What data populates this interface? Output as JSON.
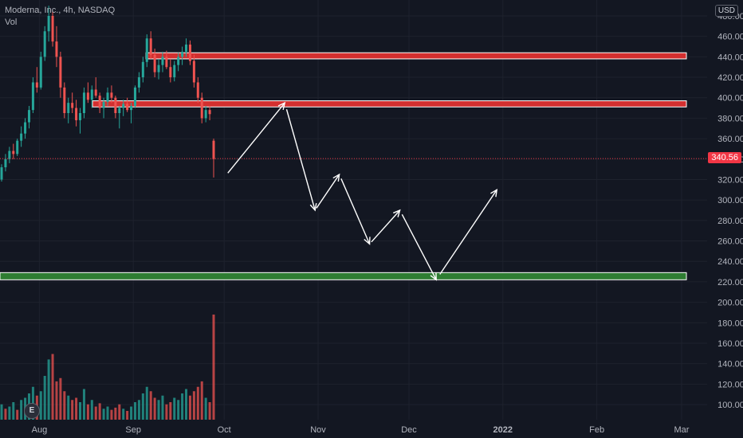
{
  "legend": {
    "symbol_line": "Moderna, Inc., 4h, NASDAQ",
    "volume_label": "Vol"
  },
  "currency": "USD",
  "last_price_label": "340.56",
  "logo_text": "E",
  "colors": {
    "background": "#131722",
    "up": "#26a69a",
    "down": "#ef5350",
    "resistance_zone": "#d32f2f",
    "support_zone": "#2e7d32",
    "last_price": "#f23645",
    "arrows": "#ffffff",
    "axis_text": "#b2b5be"
  },
  "chart_data": {
    "type": "candlestick",
    "title": "Moderna, Inc., 4h, NASDAQ",
    "y_axis": {
      "ticks": [
        100,
        120,
        140,
        160,
        180,
        200,
        220,
        240,
        260,
        280,
        300,
        320,
        340,
        360,
        380,
        400,
        420,
        440,
        460,
        480
      ],
      "tick_labels": [
        "100.00",
        "120.00",
        "140.00",
        "160.00",
        "180.00",
        "200.00",
        "220.00",
        "240.00",
        "260.00",
        "280.00",
        "300.00",
        "320.00",
        "340.00",
        "360.00",
        "380.00",
        "400.00",
        "420.00",
        "440.00",
        "460.00",
        "480.00"
      ],
      "range": [
        92,
        490
      ]
    },
    "x_axis": {
      "tick_labels": [
        "Aug",
        "Sep",
        "Oct",
        "Nov",
        "Dec",
        "2022",
        "Feb",
        "Mar"
      ]
    },
    "last_price": 340.56,
    "candles": [
      [
        320,
        335,
        318,
        332
      ],
      [
        332,
        345,
        328,
        340
      ],
      [
        340,
        352,
        336,
        348
      ],
      [
        348,
        355,
        340,
        345
      ],
      [
        345,
        360,
        343,
        358
      ],
      [
        358,
        372,
        352,
        365
      ],
      [
        365,
        380,
        360,
        376
      ],
      [
        376,
        392,
        370,
        388
      ],
      [
        388,
        420,
        385,
        415
      ],
      [
        415,
        430,
        405,
        410
      ],
      [
        410,
        445,
        408,
        440
      ],
      [
        440,
        470,
        436,
        465
      ],
      [
        465,
        490,
        455,
        480
      ],
      [
        480,
        485,
        450,
        455
      ],
      [
        455,
        470,
        430,
        440
      ],
      [
        440,
        445,
        400,
        410
      ],
      [
        410,
        415,
        380,
        385
      ],
      [
        385,
        400,
        375,
        395
      ],
      [
        395,
        405,
        385,
        390
      ],
      [
        390,
        398,
        372,
        378
      ],
      [
        378,
        390,
        365,
        385
      ],
      [
        385,
        410,
        380,
        405
      ],
      [
        405,
        415,
        395,
        398
      ],
      [
        398,
        412,
        390,
        408
      ],
      [
        408,
        420,
        400,
        402
      ],
      [
        402,
        405,
        385,
        390
      ],
      [
        390,
        400,
        380,
        396
      ],
      [
        396,
        410,
        392,
        405
      ],
      [
        405,
        412,
        395,
        400
      ],
      [
        400,
        402,
        380,
        385
      ],
      [
        385,
        392,
        370,
        390
      ],
      [
        390,
        398,
        382,
        394
      ],
      [
        394,
        400,
        386,
        388
      ],
      [
        388,
        395,
        375,
        392
      ],
      [
        392,
        412,
        390,
        410
      ],
      [
        410,
        425,
        405,
        420
      ],
      [
        420,
        440,
        415,
        435
      ],
      [
        435,
        462,
        430,
        458
      ],
      [
        458,
        465,
        438,
        442
      ],
      [
        442,
        448,
        420,
        425
      ],
      [
        425,
        438,
        418,
        432
      ],
      [
        432,
        445,
        425,
        440
      ],
      [
        440,
        446,
        428,
        430
      ],
      [
        430,
        438,
        415,
        420
      ],
      [
        420,
        436,
        416,
        432
      ],
      [
        432,
        444,
        426,
        440
      ],
      [
        440,
        450,
        432,
        445
      ],
      [
        445,
        458,
        440,
        452
      ],
      [
        452,
        456,
        432,
        436
      ],
      [
        436,
        442,
        410,
        415
      ],
      [
        415,
        420,
        395,
        400
      ],
      [
        400,
        405,
        375,
        380
      ],
      [
        380,
        392,
        376,
        388
      ],
      [
        388,
        392,
        378,
        384
      ],
      [
        358,
        360,
        322,
        340
      ]
    ],
    "volume": {
      "y_axis_shared": true,
      "bars": [
        {
          "v": 14,
          "up": true
        },
        {
          "v": 10,
          "up": false
        },
        {
          "v": 12,
          "up": true
        },
        {
          "v": 16,
          "up": true
        },
        {
          "v": 9,
          "up": false
        },
        {
          "v": 18,
          "up": true
        },
        {
          "v": 20,
          "up": true
        },
        {
          "v": 24,
          "up": true
        },
        {
          "v": 30,
          "up": true
        },
        {
          "v": 22,
          "up": false
        },
        {
          "v": 26,
          "up": true
        },
        {
          "v": 40,
          "up": true
        },
        {
          "v": 55,
          "up": true
        },
        {
          "v": 60,
          "up": false
        },
        {
          "v": 35,
          "up": false
        },
        {
          "v": 38,
          "up": false
        },
        {
          "v": 26,
          "up": false
        },
        {
          "v": 22,
          "up": true
        },
        {
          "v": 18,
          "up": false
        },
        {
          "v": 20,
          "up": false
        },
        {
          "v": 16,
          "up": true
        },
        {
          "v": 28,
          "up": true
        },
        {
          "v": 14,
          "up": false
        },
        {
          "v": 18,
          "up": true
        },
        {
          "v": 12,
          "up": false
        },
        {
          "v": 15,
          "up": false
        },
        {
          "v": 10,
          "up": true
        },
        {
          "v": 12,
          "up": true
        },
        {
          "v": 9,
          "up": false
        },
        {
          "v": 11,
          "up": false
        },
        {
          "v": 14,
          "up": false
        },
        {
          "v": 10,
          "up": true
        },
        {
          "v": 8,
          "up": false
        },
        {
          "v": 12,
          "up": true
        },
        {
          "v": 16,
          "up": true
        },
        {
          "v": 18,
          "up": true
        },
        {
          "v": 24,
          "up": true
        },
        {
          "v": 30,
          "up": true
        },
        {
          "v": 26,
          "up": false
        },
        {
          "v": 20,
          "up": false
        },
        {
          "v": 18,
          "up": true
        },
        {
          "v": 22,
          "up": true
        },
        {
          "v": 14,
          "up": false
        },
        {
          "v": 16,
          "up": false
        },
        {
          "v": 20,
          "up": true
        },
        {
          "v": 18,
          "up": true
        },
        {
          "v": 24,
          "up": true
        },
        {
          "v": 28,
          "up": true
        },
        {
          "v": 22,
          "up": false
        },
        {
          "v": 26,
          "up": false
        },
        {
          "v": 30,
          "up": false
        },
        {
          "v": 35,
          "up": false
        },
        {
          "v": 20,
          "up": true
        },
        {
          "v": 16,
          "up": false
        },
        {
          "v": 96,
          "up": false
        }
      ]
    },
    "zones": [
      {
        "name": "resistance-upper",
        "low": 438,
        "high": 444,
        "color": "#d32f2f"
      },
      {
        "name": "resistance-lower",
        "low": 391,
        "high": 397,
        "color": "#d32f2f"
      },
      {
        "name": "support",
        "low": 222,
        "high": 229,
        "color": "#2e7d32"
      }
    ],
    "projection_path": [
      {
        "x": "2021-10-01",
        "y": 322
      },
      {
        "x": "2021-10-21",
        "y": 395
      },
      {
        "x": "2021-10-31",
        "y": 290
      },
      {
        "x": "2021-11-08",
        "y": 325
      },
      {
        "x": "2021-11-18",
        "y": 257
      },
      {
        "x": "2021-11-28",
        "y": 290
      },
      {
        "x": "2021-12-10",
        "y": 222
      },
      {
        "x": "2021-12-30",
        "y": 310
      }
    ]
  }
}
